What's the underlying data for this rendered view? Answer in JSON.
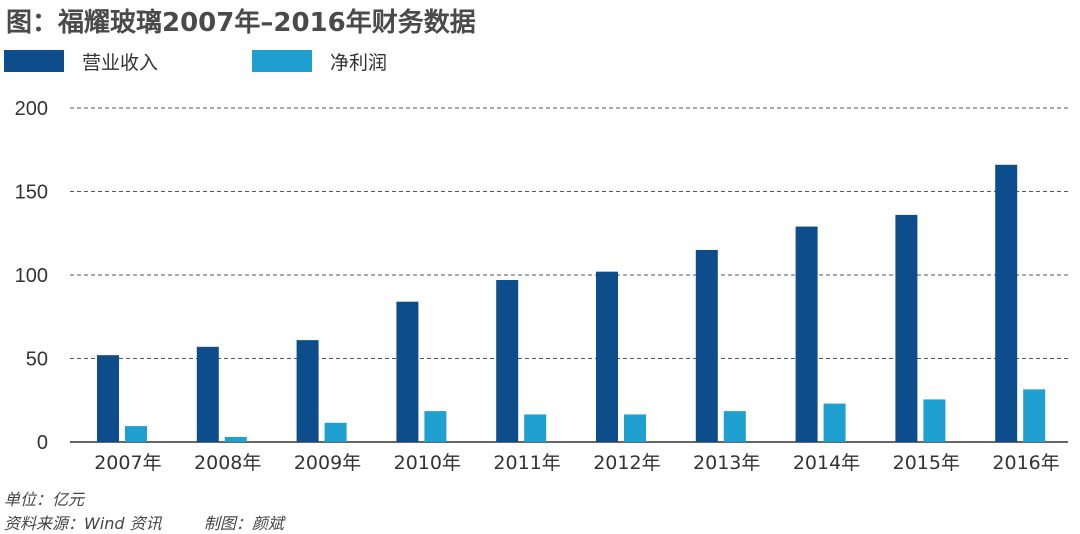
{
  "title": "图：福耀玻璃2007年–2016年财务数据",
  "colors": {
    "revenue": "#0e4d8b",
    "profit": "#1fa0d0",
    "grid": "#555555",
    "axis": "#333333"
  },
  "legend": {
    "revenue_label": "营业收入",
    "profit_label": "净利润"
  },
  "footer": {
    "unit": "单位：亿元",
    "source": "资料来源：Wind 资讯",
    "maker": "制图：颜斌"
  },
  "chart_data": {
    "type": "bar",
    "categories": [
      "2007年",
      "2008年",
      "2009年",
      "2010年",
      "2011年",
      "2012年",
      "2013年",
      "2014年",
      "2015年",
      "2016年"
    ],
    "series": [
      {
        "name": "营业收入",
        "values": [
          52,
          57,
          61,
          84,
          97,
          102,
          115,
          129,
          136,
          166
        ]
      },
      {
        "name": "净利润",
        "values": [
          9.5,
          3,
          11.5,
          18.5,
          16.5,
          16.5,
          18.5,
          23,
          25.5,
          31.5
        ]
      }
    ],
    "ylim": [
      0,
      200
    ],
    "yticks": [
      0,
      50,
      100,
      150,
      200
    ],
    "grid": true,
    "legend_position": "top-left"
  }
}
